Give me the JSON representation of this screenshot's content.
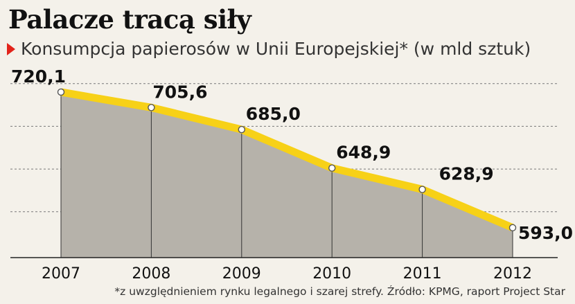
{
  "title": "Palacze tracą siły",
  "subtitle": "Konsumpcja papierosów w Unii Europejskiej* (w mld sztuk)",
  "footnote": "*z uwzględnieniem rynku legalnego i szarej strefy. Źródło: KPMG, raport Project Star",
  "colors": {
    "line": "#f7d117",
    "area": "#b6b2aa",
    "marker_fill": "#ffffff",
    "marker_stroke": "#555555",
    "grid": "#777777",
    "accent": "#e2231a"
  },
  "chart_data": {
    "type": "area",
    "title": "Palacze tracą siły",
    "subtitle": "Konsumpcja papierosów w Unii Europejskiej* (w mld sztuk)",
    "categories": [
      "2007",
      "2008",
      "2009",
      "2010",
      "2011",
      "2012"
    ],
    "values": [
      720.1,
      705.6,
      685.0,
      648.9,
      628.9,
      593.0
    ],
    "data_labels": [
      "720,1",
      "705,6",
      "685,0",
      "648,9",
      "628,9",
      "593,0"
    ],
    "ylim": [
      565,
      735
    ],
    "grid": true,
    "grid_values": [
      728,
      688,
      648,
      608
    ]
  }
}
